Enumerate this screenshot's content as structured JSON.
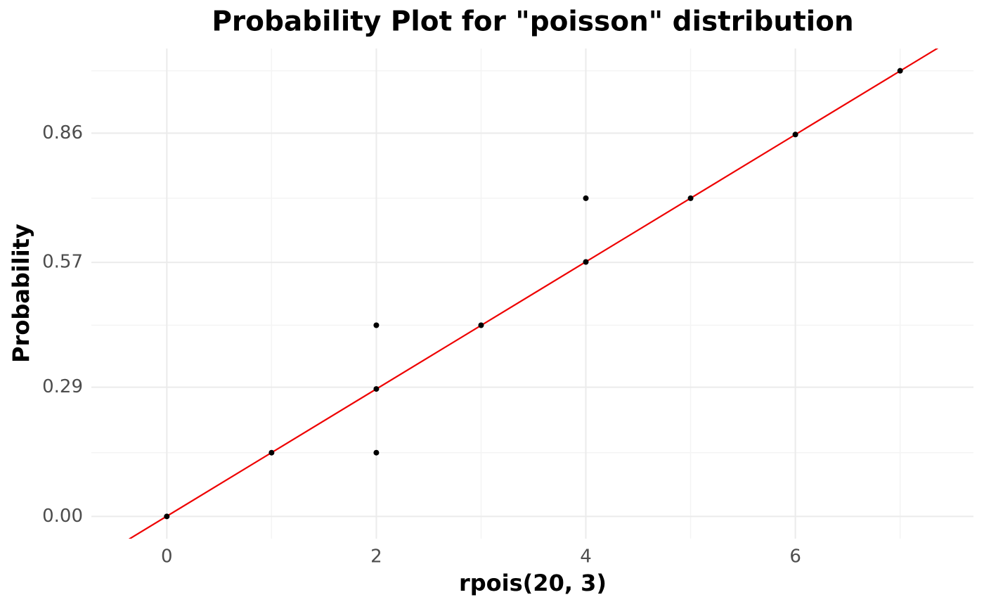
{
  "chart_data": {
    "type": "scatter",
    "title": "Probability Plot for \"poisson\" distribution",
    "x_label": "rpois(20, 3)",
    "y_label": "Probability",
    "x": [
      0,
      1,
      2,
      2,
      2,
      3,
      4,
      4,
      5,
      6,
      7
    ],
    "values": [
      0,
      0.143,
      0.143,
      0.286,
      0.429,
      0.429,
      0.571,
      0.714,
      0.714,
      0.857,
      1.0
    ],
    "color": "#000000",
    "reference_line": {
      "x": [
        -0.36,
        7.36
      ],
      "y": [
        -0.051,
        1.051
      ],
      "color": "#ee0000"
    },
    "xlim": [
      -0.72,
      7.7
    ],
    "ylim": [
      -0.05,
      1.05
    ],
    "xticks": [
      0,
      2,
      4,
      6
    ],
    "yticks": [
      {
        "value": 0,
        "label": "0.00"
      },
      0.29,
      0.57,
      0.86
    ],
    "x_minor_grid": [
      1,
      3,
      5,
      7
    ],
    "y_minor_grid": [
      0.143,
      0.429,
      0.714,
      1.0
    ],
    "grid": true
  }
}
